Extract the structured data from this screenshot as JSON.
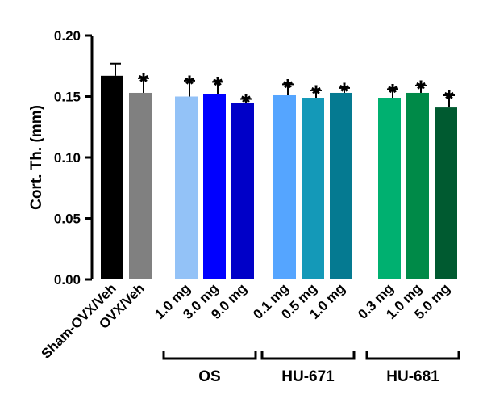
{
  "chart_data": {
    "type": "bar",
    "ylabel": "Cort. Th.  (mm)",
    "ylim": [
      0,
      0.2
    ],
    "yticks": [
      "0.00",
      "0.05",
      "0.10",
      "0.15",
      "0.20"
    ],
    "grid": false,
    "significance_marker": "*",
    "categories": [
      "Sham-OVX/Veh",
      "OVX/Veh",
      "1.0 mg",
      "3.0 mg",
      "9.0 mg",
      "0.1 mg",
      "0.5 mg",
      "1.0 mg",
      "0.3 mg",
      "1.0 mg",
      "5.0 mg"
    ],
    "values": [
      0.167,
      0.153,
      0.15,
      0.152,
      0.145,
      0.151,
      0.149,
      0.153,
      0.149,
      0.153,
      0.141
    ],
    "errors": [
      0.01,
      0.012,
      0.013,
      0.01,
      0.003,
      0.009,
      0.006,
      0.004,
      0.007,
      0.006,
      0.01
    ],
    "significant": [
      false,
      true,
      true,
      true,
      true,
      true,
      true,
      true,
      true,
      true,
      true
    ],
    "colors": [
      "#000000",
      "#808080",
      "#93c2f7",
      "#0000ff",
      "#0000c8",
      "#55a5ff",
      "#1499b8",
      "#057a91",
      "#00b070",
      "#008a48",
      "#005a30"
    ],
    "groups": [
      {
        "label": "OS",
        "start": 2,
        "end": 4
      },
      {
        "label": "HU-671",
        "start": 5,
        "end": 7
      },
      {
        "label": "HU-681",
        "start": 8,
        "end": 10
      }
    ]
  }
}
